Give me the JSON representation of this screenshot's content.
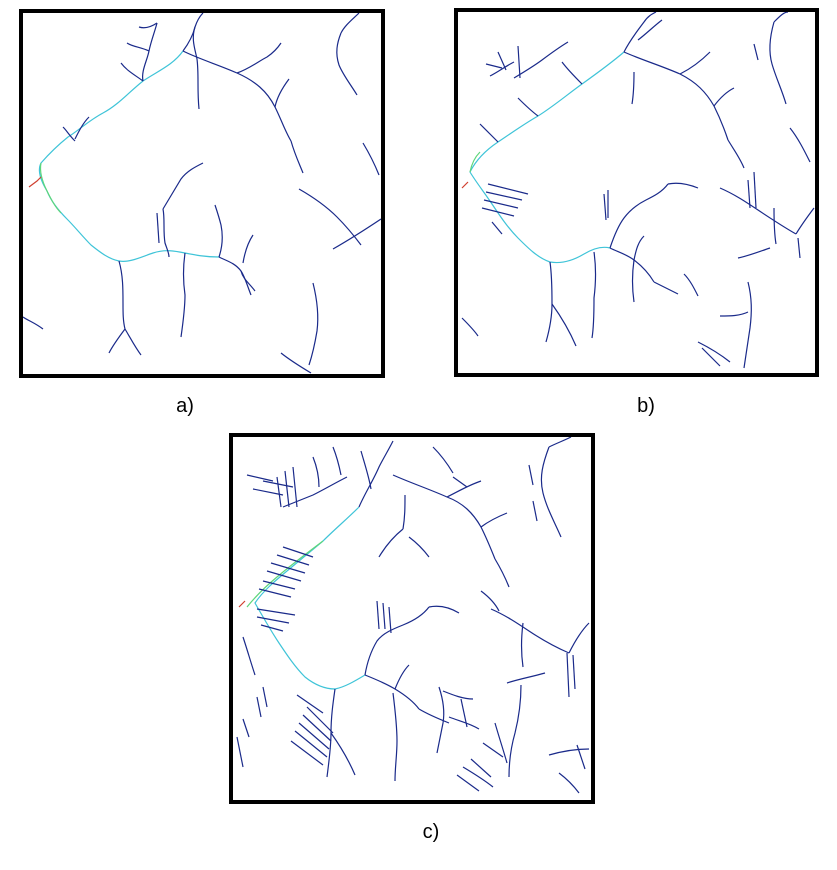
{
  "panels": [
    {
      "id": "a",
      "caption": "a)"
    },
    {
      "id": "b",
      "caption": "b)"
    },
    {
      "id": "c",
      "caption": "c)"
    }
  ],
  "colors": {
    "border": "#000000",
    "minor_stream": "#1a2a8a",
    "mid_stream": "#2e6fc8",
    "main_channel": "#3fc4d8",
    "upper_main": "#5fd67a",
    "outlet": "#d04030"
  }
}
